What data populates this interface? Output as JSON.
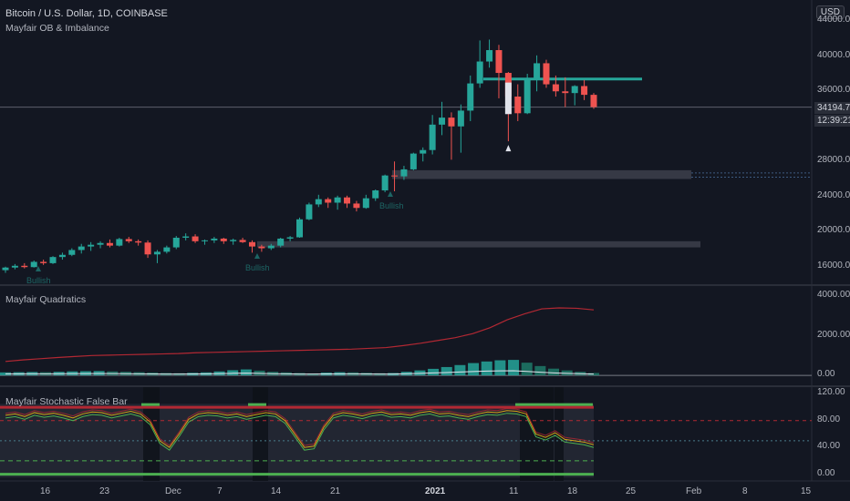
{
  "header": {
    "symbol_line": "Bitcoin / U.S. Dollar, 1D, COINBASE",
    "indicator_main": "Mayfair OB & Imbalance",
    "currency_button": "USD"
  },
  "panes": {
    "quadratics_title": "Mayfair Quadratics",
    "stochastic_title": "Mayfair Stochastic False Bar"
  },
  "price_axis": {
    "main_ticks": [
      "44000.00",
      "40000.00",
      "36000.00",
      "28000.00",
      "24000.00",
      "20000.00",
      "16000.00"
    ],
    "current_price": "34194.71",
    "countdown": "12:39:21",
    "quad_ticks": [
      "4000.00",
      "2000.00",
      "0.00"
    ],
    "stoch_ticks": [
      "120.00",
      "80.00",
      "40.00",
      "0.00"
    ]
  },
  "time_axis": {
    "labels": [
      "16",
      "23",
      "Dec",
      "7",
      "14",
      "21",
      "2021",
      "11",
      "18",
      "25",
      "Feb",
      "8",
      "15"
    ]
  },
  "markers": {
    "bullish_1": "Bullish",
    "bullish_2": "Bullish",
    "bullish_3": "Bullish"
  },
  "colors": {
    "background": "#131722",
    "up": "#26a69a",
    "down": "#ef5350",
    "quad_line": "#b22833",
    "stoch_green": "#4caf50",
    "stoch_red": "#b22833"
  },
  "chart_data": {
    "type": "candlestick",
    "timeframe": "1D",
    "ylim": [
      14000,
      46000
    ],
    "candles": [
      [
        15600,
        16000,
        15300,
        15900
      ],
      [
        15900,
        16300,
        15700,
        16100
      ],
      [
        16100,
        16400,
        15800,
        15950
      ],
      [
        15950,
        16700,
        15900,
        16550
      ],
      [
        16550,
        16800,
        16200,
        16400
      ],
      [
        16400,
        17200,
        16300,
        17100
      ],
      [
        17100,
        17600,
        16800,
        17350
      ],
      [
        17350,
        18100,
        17200,
        17900
      ],
      [
        17900,
        18600,
        17500,
        18300
      ],
      [
        18300,
        18800,
        17800,
        18500
      ],
      [
        18500,
        18900,
        18100,
        18700
      ],
      [
        18700,
        19100,
        18200,
        18400
      ],
      [
        18400,
        19300,
        18300,
        19150
      ],
      [
        19150,
        19400,
        18700,
        18900
      ],
      [
        18900,
        19100,
        18400,
        18750
      ],
      [
        18750,
        19000,
        17000,
        17400
      ],
      [
        17400,
        17900,
        16400,
        17700
      ],
      [
        17700,
        18400,
        17500,
        18200
      ],
      [
        18200,
        19500,
        18000,
        19300
      ],
      [
        19300,
        19800,
        19000,
        19450
      ],
      [
        19450,
        19700,
        18700,
        18900
      ],
      [
        18900,
        19100,
        18500,
        19000
      ],
      [
        19000,
        19400,
        18700,
        19200
      ],
      [
        19200,
        19300,
        18600,
        18900
      ],
      [
        18900,
        19200,
        18500,
        19050
      ],
      [
        19050,
        19300,
        18700,
        18800
      ],
      [
        18800,
        19000,
        17600,
        18300
      ],
      [
        18300,
        18500,
        17700,
        18100
      ],
      [
        18100,
        18600,
        17900,
        18400
      ],
      [
        18400,
        19300,
        18200,
        19200
      ],
      [
        19200,
        19500,
        18900,
        19350
      ],
      [
        19350,
        21600,
        19300,
        21400
      ],
      [
        21400,
        23300,
        21300,
        23100
      ],
      [
        23100,
        24200,
        22800,
        23700
      ],
      [
        23700,
        23900,
        22700,
        23300
      ],
      [
        23300,
        24100,
        22500,
        23900
      ],
      [
        23900,
        24100,
        22700,
        23200
      ],
      [
        23200,
        23500,
        22300,
        22700
      ],
      [
        22700,
        24200,
        22600,
        23800
      ],
      [
        23800,
        24800,
        23500,
        24700
      ],
      [
        24700,
        26500,
        24500,
        26400
      ],
      [
        26400,
        28000,
        24600,
        26300
      ],
      [
        26300,
        27500,
        25900,
        27100
      ],
      [
        27100,
        29000,
        27000,
        28900
      ],
      [
        28900,
        29600,
        28000,
        29300
      ],
      [
        29300,
        33300,
        28800,
        32200
      ],
      [
        32200,
        34800,
        31000,
        33000
      ],
      [
        33000,
        33600,
        28200,
        32000
      ],
      [
        32000,
        34500,
        29000,
        33800
      ],
      [
        33800,
        37800,
        32600,
        36900
      ],
      [
        36900,
        41800,
        36400,
        39400
      ],
      [
        39400,
        41900,
        38700,
        40700
      ],
      [
        40700,
        41300,
        35200,
        38100
      ],
      [
        38100,
        38200,
        30300,
        35400
      ],
      [
        35400,
        36800,
        32600,
        33500
      ],
      [
        33500,
        38000,
        33400,
        37300
      ],
      [
        37300,
        40100,
        36000,
        39200
      ],
      [
        39200,
        39600,
        36400,
        36800
      ],
      [
        36800,
        37800,
        35400,
        36000
      ],
      [
        36000,
        37600,
        34200,
        35800
      ],
      [
        35800,
        36700,
        34400,
        36600
      ],
      [
        36600,
        37300,
        35000,
        35600
      ],
      [
        35600,
        35800,
        34000,
        34200
      ]
    ],
    "order_blocks": [
      {
        "type": "bullish",
        "low": 26000,
        "high": 27000
      },
      {
        "type": "bullish",
        "low": 18200,
        "high": 18900
      },
      {
        "type": "level",
        "value": 37400
      }
    ],
    "quadratics": {
      "ylim": [
        -500,
        4500
      ],
      "line_red": [
        700,
        780,
        840,
        900,
        950,
        1000,
        1020,
        1040,
        1060,
        1080,
        1100,
        1140,
        1160,
        1180,
        1200,
        1220,
        1240,
        1260,
        1280,
        1300,
        1320,
        1360,
        1400,
        1500,
        1620,
        1760,
        1900,
        2100,
        2400,
        2800,
        3100,
        3350,
        3400,
        3380,
        3300
      ],
      "histogram": [
        150,
        160,
        170,
        160,
        180,
        200,
        210,
        220,
        200,
        180,
        160,
        140,
        120,
        110,
        130,
        150,
        200,
        260,
        300,
        240,
        180,
        150,
        120,
        100,
        140,
        160,
        150,
        130,
        110,
        120,
        180,
        250,
        330,
        420,
        520,
        620,
        700,
        760,
        780,
        640,
        470,
        340,
        250,
        180,
        120
      ]
    },
    "stochastic": {
      "ylim": [
        -10,
        130
      ],
      "levels": [
        80,
        50,
        20
      ]
    }
  }
}
